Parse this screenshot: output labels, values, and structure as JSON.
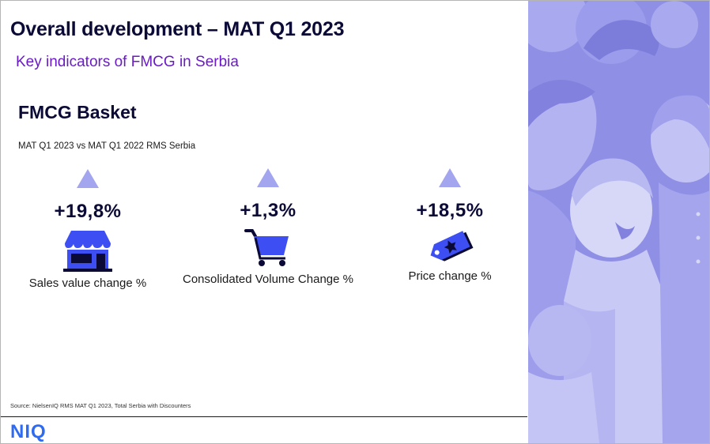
{
  "title": "Overall development – MAT Q1 2023",
  "subtitle": "Key indicators of FMCG in Serbia",
  "section_title": "FMCG Basket",
  "comparison": "MAT Q1 2023 vs MAT Q1 2022 RMS Serbia",
  "kpis": [
    {
      "value": "+19,8%",
      "label": "Sales value change %",
      "direction": "up",
      "icon": "store-icon"
    },
    {
      "value": "+1,3%",
      "label": "Consolidated Volume Change %",
      "direction": "up",
      "icon": "shopping-cart-icon"
    },
    {
      "value": "+18,5%",
      "label": "Price change %",
      "direction": "up",
      "icon": "price-tag-icon"
    }
  ],
  "source": "Source: NielsenIQ RMS MAT Q1 2023, Total Serbia with Discounters",
  "logo": "NIQ",
  "colors": {
    "navy": "#0b0a36",
    "purple_subtitle": "#6a1bc4",
    "icon_blue": "#3d4ff2",
    "arrow": "#a3a5ee",
    "logo_blue": "#2f6bf0",
    "art_background": "#8f8fe6"
  }
}
